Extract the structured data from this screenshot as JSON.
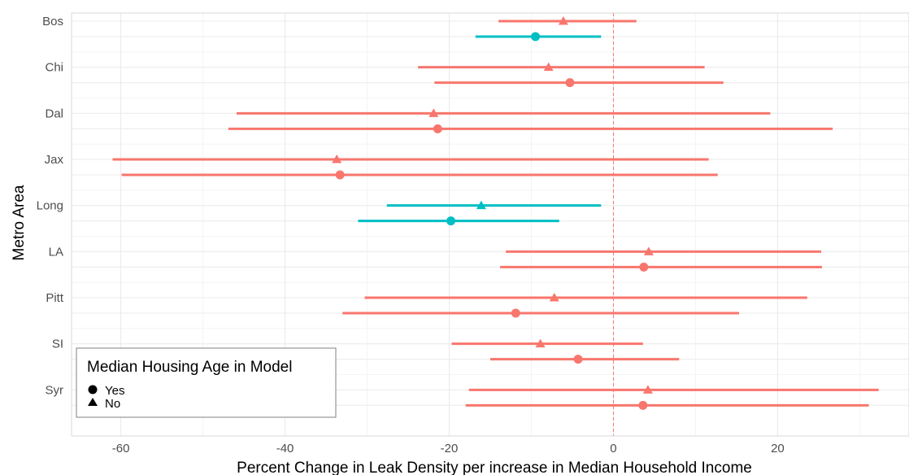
{
  "chart_data": {
    "type": "scatter",
    "subtype": "dot-and-whisker",
    "title": "",
    "xlabel": "Percent Change in Leak Density per increase in Median Household Income",
    "ylabel": "Metro Area",
    "xlim": [
      -66,
      36
    ],
    "x_ticks": [
      -60,
      -40,
      -20,
      0,
      20
    ],
    "categories": [
      "Bos",
      "Chi",
      "Dal",
      "Jax",
      "Long",
      "LA",
      "Pitt",
      "SI",
      "Syr"
    ],
    "reference_line": {
      "x": 0,
      "style": "dashed",
      "color": "#f8766d"
    },
    "grid": true,
    "colors": {
      "significant": "#00bfc4",
      "not_significant": "#f8766d"
    },
    "legend": {
      "title": "Median Housing Age in Model",
      "position": "bottom-left",
      "entries": [
        {
          "label": "Yes",
          "shape": "circle"
        },
        {
          "label": "No",
          "shape": "triangle"
        }
      ]
    },
    "series": [
      {
        "housing_age": "Yes",
        "shape": "circle",
        "points": [
          {
            "metro": "Bos",
            "estimate": -9.5,
            "low": -16.8,
            "high": -1.5,
            "significant": true
          },
          {
            "metro": "Chi",
            "estimate": -5.3,
            "low": -21.8,
            "high": 13.4,
            "significant": false
          },
          {
            "metro": "Dal",
            "estimate": -21.4,
            "low": -46.9,
            "high": 26.7,
            "significant": false
          },
          {
            "metro": "Jax",
            "estimate": -33.3,
            "low": -59.9,
            "high": 12.7,
            "significant": false
          },
          {
            "metro": "Long",
            "estimate": -19.8,
            "low": -31.1,
            "high": -6.6,
            "significant": true
          },
          {
            "metro": "LA",
            "estimate": 3.7,
            "low": -13.8,
            "high": 25.4,
            "significant": false
          },
          {
            "metro": "Pitt",
            "estimate": -11.9,
            "low": -33.0,
            "high": 15.3,
            "significant": false
          },
          {
            "metro": "SI",
            "estimate": -4.3,
            "low": -15.0,
            "high": 8.0,
            "significant": false
          },
          {
            "metro": "Syr",
            "estimate": 3.6,
            "low": -18.0,
            "high": 31.1,
            "significant": false
          }
        ]
      },
      {
        "housing_age": "No",
        "shape": "triangle",
        "points": [
          {
            "metro": "Bos",
            "estimate": -6.1,
            "low": -14.0,
            "high": 2.8,
            "significant": false
          },
          {
            "metro": "Chi",
            "estimate": -7.9,
            "low": -23.8,
            "high": 11.1,
            "significant": false
          },
          {
            "metro": "Dal",
            "estimate": -21.9,
            "low": -45.9,
            "high": 19.1,
            "significant": false
          },
          {
            "metro": "Jax",
            "estimate": -33.7,
            "low": -61.0,
            "high": 11.6,
            "significant": false
          },
          {
            "metro": "Long",
            "estimate": -16.1,
            "low": -27.6,
            "high": -1.5,
            "significant": true
          },
          {
            "metro": "LA",
            "estimate": 4.3,
            "low": -13.1,
            "high": 25.3,
            "significant": false
          },
          {
            "metro": "Pitt",
            "estimate": -7.2,
            "low": -30.3,
            "high": 23.6,
            "significant": false
          },
          {
            "metro": "SI",
            "estimate": -8.9,
            "low": -19.7,
            "high": 3.6,
            "significant": false
          },
          {
            "metro": "Syr",
            "estimate": 4.2,
            "low": -17.6,
            "high": 32.3,
            "significant": false
          }
        ]
      }
    ]
  }
}
